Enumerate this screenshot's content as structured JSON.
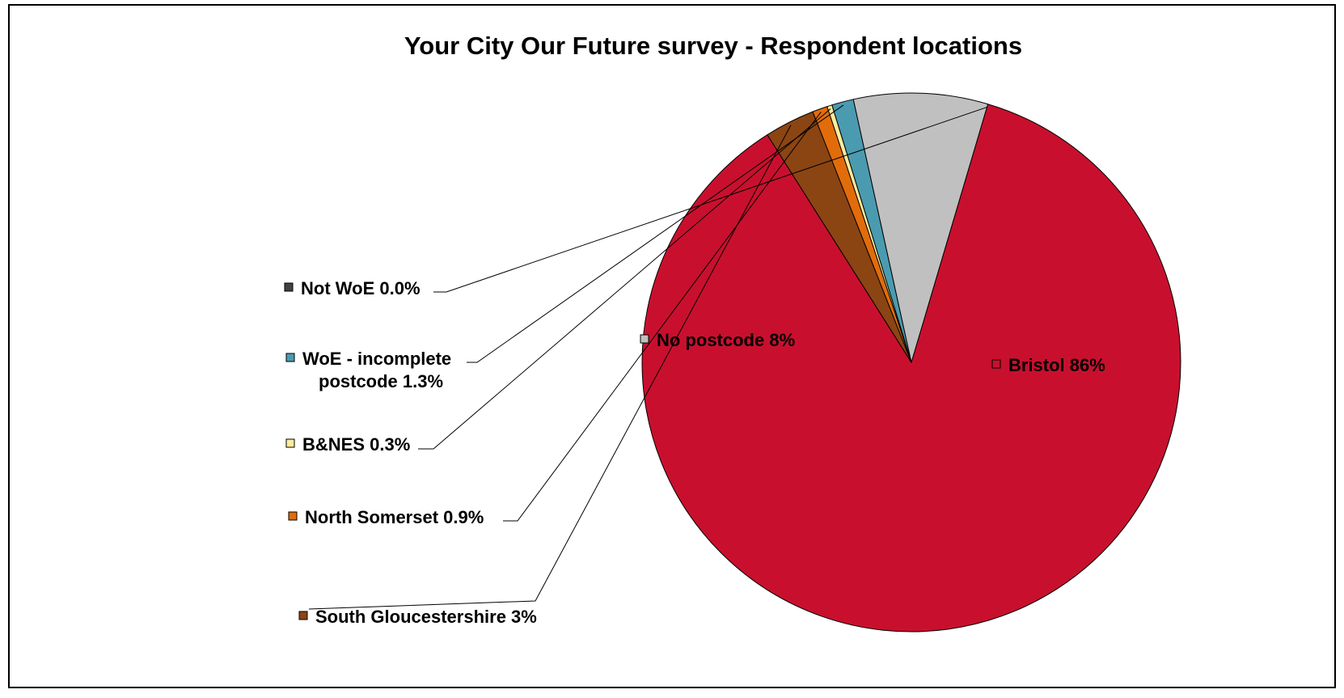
{
  "chart_data": {
    "type": "pie",
    "title": "Your City Our Future survey - Respondent locations",
    "slices": [
      {
        "name": "Bristol",
        "value": 86,
        "label_lines": [
          "Bristol 86%"
        ],
        "color": "#c8102e"
      },
      {
        "name": "South Gloucestershire",
        "value": 3,
        "label_lines": [
          "South Gloucestershire 3%"
        ],
        "color": "#8b4513"
      },
      {
        "name": "North Somerset",
        "value": 0.9,
        "label_lines": [
          "North Somerset 0.9%"
        ],
        "color": "#e36c0a"
      },
      {
        "name": "B&NES",
        "value": 0.3,
        "label_lines": [
          "B&NES 0.3%"
        ],
        "color": "#ffeb9c"
      },
      {
        "name": "WoE - incomplete postcode",
        "value": 1.3,
        "label_lines": [
          "WoE - incomplete",
          "postcode 1.3%"
        ],
        "color": "#4a9bb0"
      },
      {
        "name": "No postcode",
        "value": 8,
        "label_lines": [
          "No postcode 8%"
        ],
        "color": "#c0c0c0"
      },
      {
        "name": "Not WoE",
        "value": 0.0,
        "label_lines": [
          "Not WoE 0.0%"
        ],
        "color": "#3f4347"
      }
    ]
  }
}
